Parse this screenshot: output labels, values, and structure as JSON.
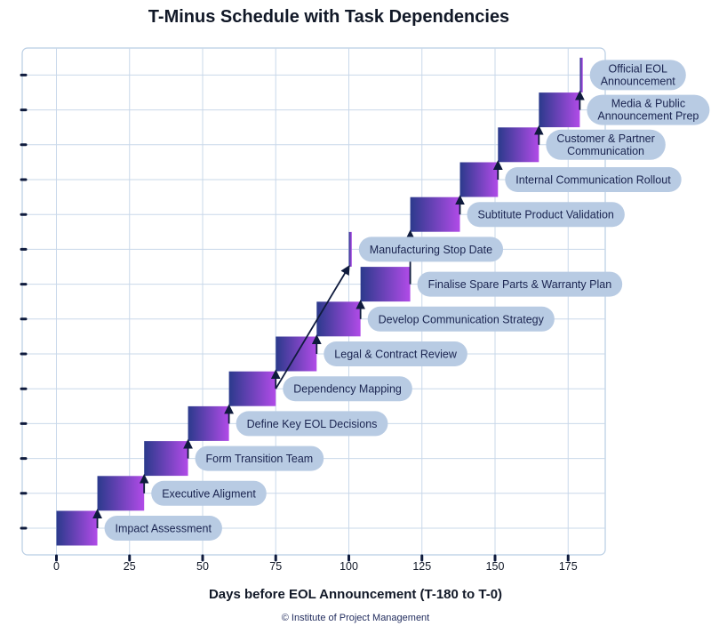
{
  "chart_data": {
    "type": "gantt",
    "title": "T-Minus Schedule with Task Dependencies",
    "xlabel": "Days before EOL Announcement (T-180 to T-0)",
    "xlim": [
      -10,
      188
    ],
    "x_ticks": [
      0,
      25,
      50,
      75,
      100,
      125,
      150,
      175
    ],
    "grid": true,
    "bar_gradient": [
      "#2b3a8c",
      "#b14be8"
    ],
    "pill_color": "#b8cbe3",
    "tasks": [
      {
        "label": "Impact Assessment",
        "start": 0,
        "end": 14
      },
      {
        "label": "Executive Aligment",
        "start": 14,
        "end": 30
      },
      {
        "label": "Form Transition Team",
        "start": 30,
        "end": 45
      },
      {
        "label": "Define Key EOL Decisions",
        "start": 45,
        "end": 59
      },
      {
        "label": "Dependency Mapping",
        "start": 59,
        "end": 75
      },
      {
        "label": "Legal & Contract Review",
        "start": 75,
        "end": 89
      },
      {
        "label": "Develop Communication Strategy",
        "start": 89,
        "end": 104
      },
      {
        "label": "Finalise Spare Parts & Warranty Plan",
        "start": 104,
        "end": 121
      },
      {
        "label": "Manufacturing Stop Date",
        "start": 100,
        "end": 101
      },
      {
        "label": "Subtitute Product Validation",
        "start": 121,
        "end": 138
      },
      {
        "label": "Internal Communication Rollout",
        "start": 138,
        "end": 151
      },
      {
        "label": [
          "Customer & Partner",
          "Communication"
        ],
        "start": 151,
        "end": 165
      },
      {
        "label": [
          "Media & Public",
          "Announcement Prep"
        ],
        "start": 165,
        "end": 179
      },
      {
        "label": [
          "Official EOL",
          "Announcement"
        ],
        "start": 179,
        "end": 180
      }
    ],
    "dependencies": [
      {
        "from": 0,
        "to": 1
      },
      {
        "from": 1,
        "to": 2
      },
      {
        "from": 2,
        "to": 3
      },
      {
        "from": 3,
        "to": 4
      },
      {
        "from": 4,
        "to": 5
      },
      {
        "from": 4,
        "to": 8
      },
      {
        "from": 5,
        "to": 6
      },
      {
        "from": 6,
        "to": 7
      },
      {
        "from": 7,
        "to": 9
      },
      {
        "from": 9,
        "to": 10
      },
      {
        "from": 10,
        "to": 11
      },
      {
        "from": 11,
        "to": 12
      },
      {
        "from": 12,
        "to": 13
      }
    ]
  },
  "footer": {
    "copyright": "© Institute of Project Management"
  }
}
